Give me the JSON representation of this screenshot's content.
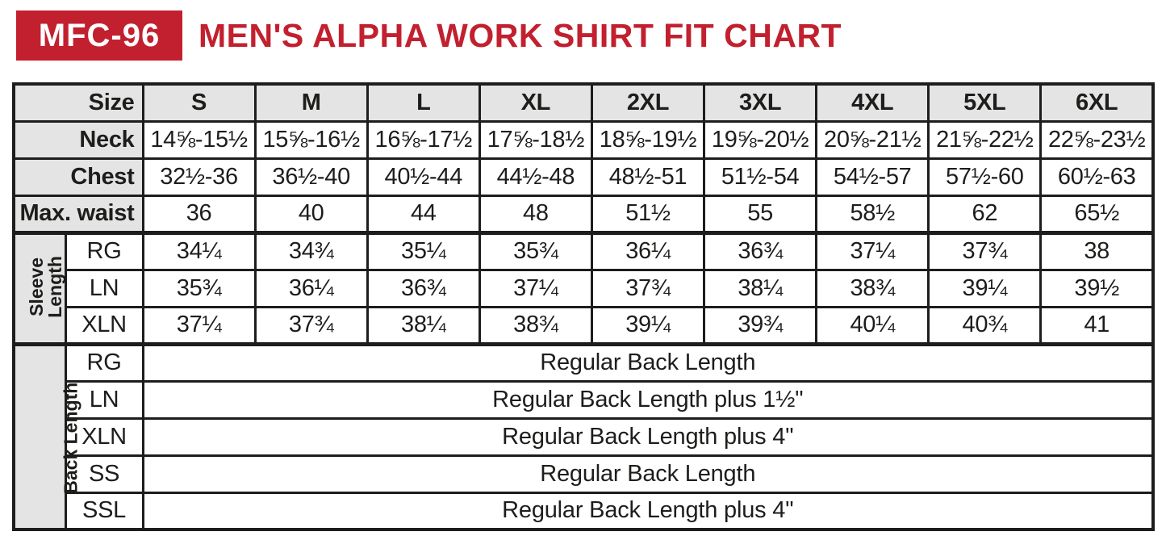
{
  "header": {
    "product_code": "MFC-96",
    "title": "MEN'S ALPHA WORK SHIRT FIT CHART"
  },
  "colors": {
    "accent_red": "#c2202f",
    "header_gray": "#e4e4e4",
    "border_black": "#1d1d1b"
  },
  "table": {
    "size_label": "Size",
    "sizes": [
      "S",
      "M",
      "L",
      "XL",
      "2XL",
      "3XL",
      "4XL",
      "5XL",
      "6XL"
    ],
    "measurement_rows": [
      {
        "label": "Neck",
        "values": [
          "14⅝-15½",
          "15⅝-16½",
          "16⅝-17½",
          "17⅝-18½",
          "18⅝-19½",
          "19⅝-20½",
          "20⅝-21½",
          "21⅝-22½",
          "22⅝-23½"
        ]
      },
      {
        "label": "Chest",
        "values": [
          "32½-36",
          "36½-40",
          "40½-44",
          "44½-48",
          "48½-51",
          "51½-54",
          "54½-57",
          "57½-60",
          "60½-63"
        ]
      },
      {
        "label": "Max. waist",
        "values": [
          "36",
          "40",
          "44",
          "48",
          "51½",
          "55",
          "58½",
          "62",
          "65½"
        ]
      }
    ],
    "sleeve_length": {
      "group_label_lines": [
        "Sleeve",
        "Length"
      ],
      "rows": [
        {
          "label": "RG",
          "values": [
            "34¼",
            "34¾",
            "35¼",
            "35¾",
            "36¼",
            "36¾",
            "37¼",
            "37¾",
            "38"
          ]
        },
        {
          "label": "LN",
          "values": [
            "35¾",
            "36¼",
            "36¾",
            "37¼",
            "37¾",
            "38¼",
            "38¾",
            "39¼",
            "39½"
          ]
        },
        {
          "label": "XLN",
          "values": [
            "37¼",
            "37¾",
            "38¼",
            "38¾",
            "39¼",
            "39¾",
            "40¼",
            "40¾",
            "41"
          ]
        }
      ]
    },
    "back_length": {
      "group_label_lines": [
        "Back Length"
      ],
      "rows": [
        {
          "label": "RG",
          "text": "Regular Back Length"
        },
        {
          "label": "LN",
          "text": "Regular Back Length plus 1½\""
        },
        {
          "label": "XLN",
          "text": "Regular Back Length plus 4\""
        },
        {
          "label": "SS",
          "text": "Regular Back Length"
        },
        {
          "label": "SSL",
          "text": "Regular Back Length plus 4\""
        }
      ]
    }
  }
}
